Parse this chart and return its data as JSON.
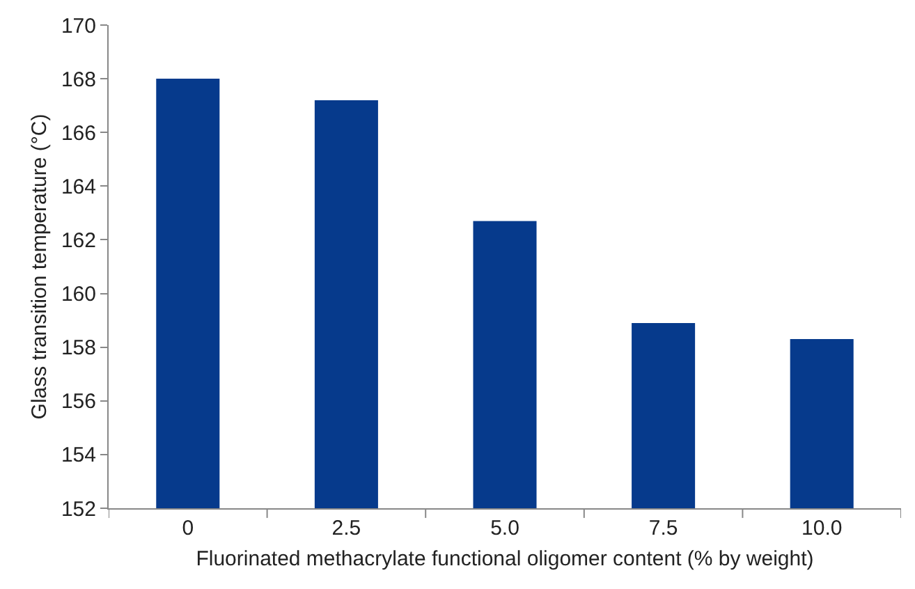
{
  "chart_data": {
    "type": "bar",
    "xlabel": "Fluorinated methacrylate functional oligomer content (% by weight)",
    "ylabel": "Glass transition temperature (°C)",
    "categories": [
      "0",
      "2.5",
      "5.0",
      "7.5",
      "10.0"
    ],
    "values": [
      168.0,
      167.2,
      162.7,
      158.9,
      158.3
    ],
    "color": "#063a8c",
    "ylim": [
      152,
      170
    ],
    "yticks": [
      152,
      154,
      156,
      158,
      160,
      162,
      164,
      166,
      168,
      170
    ],
    "grid": false
  }
}
